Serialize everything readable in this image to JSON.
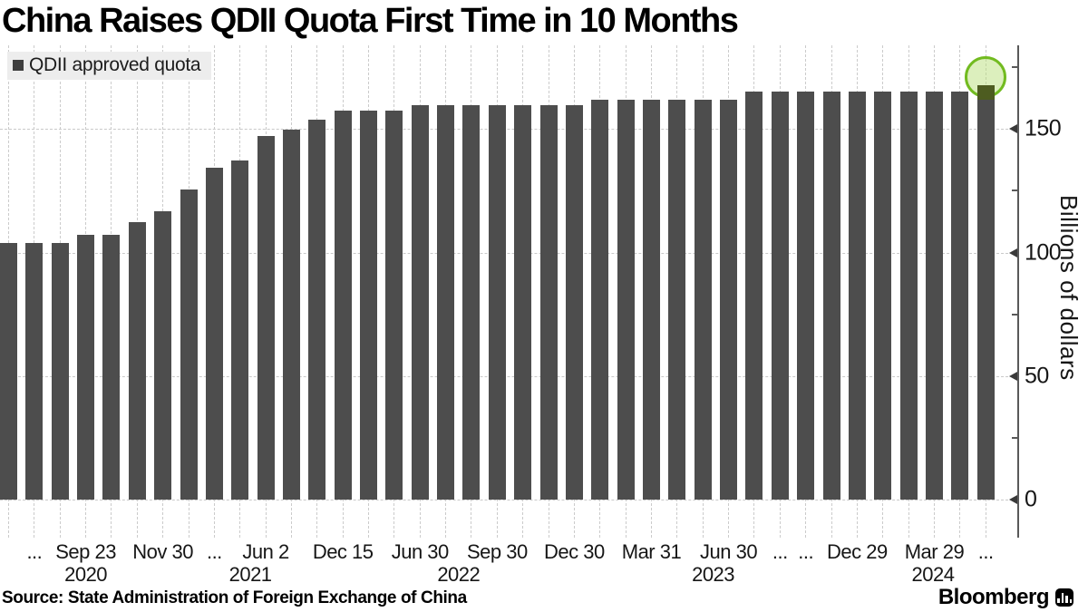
{
  "title": "China Raises QDII Quota First Time in 10 Months",
  "legend": {
    "label": "QDII approved quota",
    "swatch_color": "#3f3f3f",
    "background": "#ededed"
  },
  "source": "Source: State Administration of Foreign Exchange of China",
  "brand": {
    "name": "Bloomberg",
    "icon": "bar-chart-icon"
  },
  "chart_data": {
    "type": "bar",
    "title": "China Raises QDII Quota First Time in 10 Months",
    "series_name": "QDII approved quota",
    "ylabel": "Billions of dollars",
    "ylim": [
      0,
      182
    ],
    "grid": true,
    "legend_position": "top-left",
    "y_ticks": [
      {
        "value": 0,
        "label": "0"
      },
      {
        "value": 50,
        "label": "50"
      },
      {
        "value": 100,
        "label": "100"
      },
      {
        "value": 150,
        "label": "150"
      }
    ],
    "y_minor_ticks": [
      25,
      75,
      125,
      175
    ],
    "bar_color": "#4d4d4d",
    "grid_color": "#cbcbcb",
    "values": [
      104,
      104,
      104,
      107.3,
      107.3,
      112.3,
      116.6,
      125.5,
      134.3,
      137.4,
      147,
      149.8,
      153.9,
      157.4,
      157.4,
      157.4,
      159.7,
      159.7,
      159.7,
      159.7,
      159.7,
      159.7,
      159.7,
      162,
      162,
      162,
      162,
      162,
      162,
      165,
      165,
      165,
      165,
      165,
      165,
      165,
      165,
      165,
      167.8
    ],
    "x_tick_labels": [
      {
        "bar": 2,
        "label": "..."
      },
      {
        "bar": 4,
        "label": "Sep 23"
      },
      {
        "bar": 7,
        "label": "Nov 30"
      },
      {
        "bar": 9,
        "label": "..."
      },
      {
        "bar": 11,
        "label": "Jun 2"
      },
      {
        "bar": 14,
        "label": "Dec 15"
      },
      {
        "bar": 17,
        "label": "Jun 30"
      },
      {
        "bar": 20,
        "label": "Sep 30"
      },
      {
        "bar": 23,
        "label": "Dec 30"
      },
      {
        "bar": 26,
        "label": "Mar 31"
      },
      {
        "bar": 29,
        "label": "Jun 30"
      },
      {
        "bar": 31,
        "label": "..."
      },
      {
        "bar": 32,
        "label": "..."
      },
      {
        "bar": 34,
        "label": "Dec 29"
      },
      {
        "bar": 37,
        "label": "Mar 29"
      },
      {
        "bar": 39,
        "label": "..."
      }
    ],
    "year_labels": [
      {
        "label": "2020",
        "bar": 4.0
      },
      {
        "label": "2021",
        "bar": 10.4
      },
      {
        "label": "2022",
        "bar": 18.5
      },
      {
        "label": "2023",
        "bar": 28.4
      },
      {
        "label": "2024",
        "bar": 36.95
      }
    ],
    "highlight": {
      "bar": 39,
      "value": 167.8,
      "circle_border_color": "#72bb20",
      "circle_fill_color": "rgba(186,224,124,0.5)",
      "increment_cap_color": "#4d5c20"
    }
  }
}
